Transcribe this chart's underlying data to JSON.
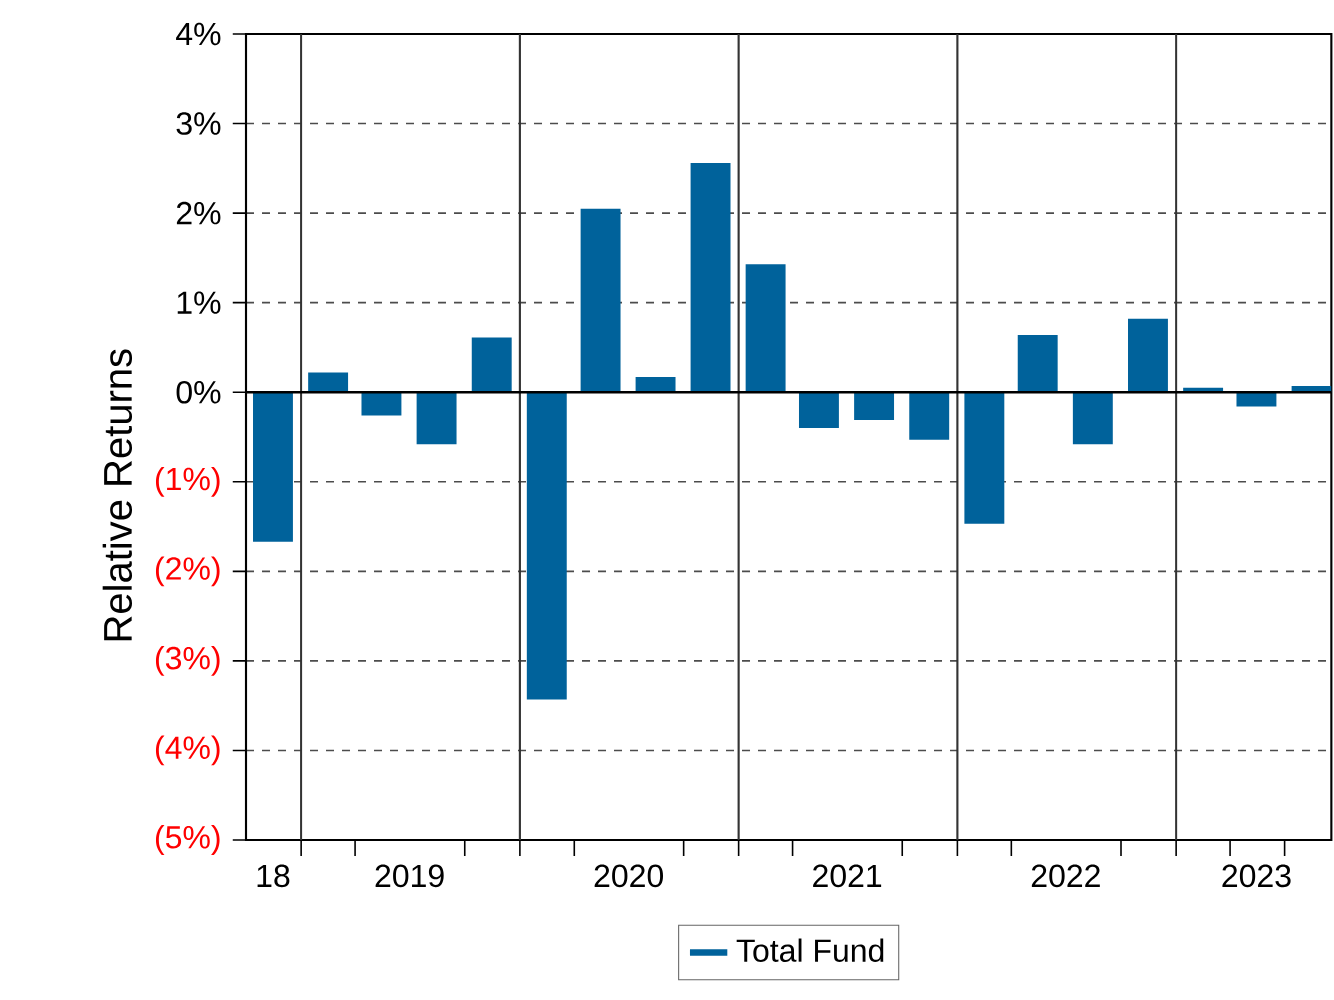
{
  "chart_data": {
    "type": "bar",
    "ylabel": "Relative Returns",
    "x": [
      "2018-11-15",
      "2019-02-15",
      "2019-05-15",
      "2019-08-15",
      "2019-11-15",
      "2020-02-15",
      "2020-05-15",
      "2020-08-15",
      "2020-11-15",
      "2021-02-15",
      "2021-05-15",
      "2021-08-15",
      "2021-11-15",
      "2022-02-15",
      "2022-05-15",
      "2022-08-15",
      "2022-11-15",
      "2023-02-15",
      "2023-05-15",
      "2023-08-15"
    ],
    "series": [
      {
        "name": "Total Fund",
        "color": "#00629b",
        "values": [
          -1.67,
          0.22,
          -0.26,
          -0.58,
          0.61,
          -3.43,
          2.05,
          0.17,
          2.56,
          1.43,
          -0.4,
          -0.31,
          -0.53,
          -1.47,
          0.64,
          -0.58,
          0.82,
          0.05,
          -0.16,
          0.07
        ]
      }
    ],
    "xlim": [
      "2018-10-01",
      "2023-09-17"
    ],
    "xticks": [
      {
        "value": "2018-11-15",
        "label": "18"
      },
      {
        "value": "2019-01-01",
        "label": null
      },
      {
        "value": "2019-04-01",
        "label": null
      },
      {
        "value": "2019-07-01",
        "label": "2019"
      },
      {
        "value": "2019-10-01",
        "label": null
      },
      {
        "value": "2020-01-01",
        "label": null
      },
      {
        "value": "2020-04-01",
        "label": null
      },
      {
        "value": "2020-07-01",
        "label": "2020"
      },
      {
        "value": "2020-10-01",
        "label": null
      },
      {
        "value": "2021-01-01",
        "label": null
      },
      {
        "value": "2021-04-01",
        "label": null
      },
      {
        "value": "2021-07-01",
        "label": "2021"
      },
      {
        "value": "2021-10-01",
        "label": null
      },
      {
        "value": "2022-01-01",
        "label": null
      },
      {
        "value": "2022-04-01",
        "label": null
      },
      {
        "value": "2022-07-01",
        "label": "2022"
      },
      {
        "value": "2022-10-01",
        "label": null
      },
      {
        "value": "2023-01-01",
        "label": null
      },
      {
        "value": "2023-04-01",
        "label": null
      },
      {
        "value": "2023-05-15",
        "label": "2023"
      },
      {
        "value": "2023-07-01",
        "label": null
      }
    ],
    "ylim": [
      -5,
      4
    ],
    "yticks": [
      {
        "value": -5,
        "label": "(5%)"
      },
      {
        "value": -4,
        "label": "(4%)"
      },
      {
        "value": -3,
        "label": "(3%)"
      },
      {
        "value": -2,
        "label": "(2%)"
      },
      {
        "value": -1,
        "label": "(1%)"
      },
      {
        "value": 0,
        "label": "0%"
      },
      {
        "value": 1,
        "label": "1%"
      },
      {
        "value": 2,
        "label": "2%"
      },
      {
        "value": 3,
        "label": "3%"
      },
      {
        "value": 4,
        "label": "4%"
      }
    ],
    "grid": "y",
    "legend": "bottom",
    "ref_lines": [
      {
        "axis": "x",
        "value": "2019-01-01",
        "color": "#333333",
        "line_style": "solid"
      },
      {
        "axis": "x",
        "value": "2020-01-01",
        "color": "#333333",
        "line_style": "solid"
      },
      {
        "axis": "x",
        "value": "2021-01-01",
        "color": "#333333",
        "line_style": "solid"
      },
      {
        "axis": "x",
        "value": "2022-01-01",
        "color": "#333333",
        "line_style": "solid"
      },
      {
        "axis": "x",
        "value": "2023-01-01",
        "color": "#333333",
        "line_style": "solid"
      },
      {
        "axis": "y",
        "value": 0,
        "color": "#000000",
        "line_style": "solid"
      }
    ]
  }
}
